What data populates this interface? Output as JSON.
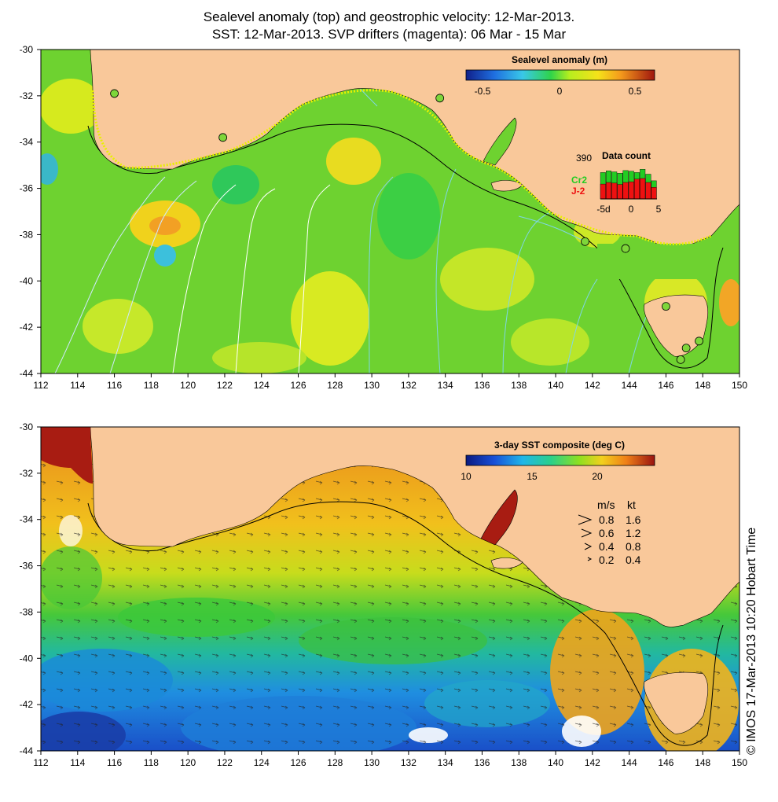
{
  "title": {
    "line1": "Sealevel anomaly (top) and geostrophic velocity: 12-Mar-2013.",
    "line2": "SST: 12-Mar-2013. SVP drifters (magenta): 06 Mar - 15 Mar"
  },
  "axes": {
    "lon_ticks": [
      "112",
      "114",
      "116",
      "118",
      "120",
      "122",
      "124",
      "126",
      "128",
      "130",
      "132",
      "134",
      "136",
      "138",
      "140",
      "142",
      "144",
      "146",
      "148",
      "150"
    ],
    "lat_ticks": [
      "-30",
      "-32",
      "-34",
      "-36",
      "-38",
      "-40",
      "-42",
      "-44"
    ],
    "lon_range": [
      112,
      150
    ],
    "lat_range": [
      -44,
      -30
    ]
  },
  "top_panel": {
    "colorbar_title": "Sealevel anomaly (m)",
    "colorbar_ticks": [
      "-0.5",
      "0",
      "0.5"
    ],
    "data_count": {
      "title": "Data count",
      "max_label": "390",
      "series": [
        {
          "name": "Cr2",
          "color": "#22cc22"
        },
        {
          "name": "J-2",
          "color": "#ee1111"
        }
      ],
      "x_ticks": [
        "-5d",
        "0",
        "5"
      ]
    },
    "tide_gauges": [
      [
        116.0,
        -31.9
      ],
      [
        121.9,
        -33.8
      ],
      [
        133.7,
        -32.1
      ],
      [
        141.6,
        -38.3
      ],
      [
        143.8,
        -38.6
      ],
      [
        146.0,
        -41.1
      ],
      [
        147.1,
        -42.9
      ],
      [
        147.8,
        -42.6
      ],
      [
        146.8,
        -43.4
      ]
    ]
  },
  "bottom_panel": {
    "colorbar_title": "3-day SST composite (deg C)",
    "colorbar_ticks": [
      "10",
      "15",
      "20"
    ],
    "velocity_legend": {
      "headers": [
        "m/s",
        "kt"
      ],
      "rows": [
        [
          "0.8",
          "1.6"
        ],
        [
          "0.6",
          "1.2"
        ],
        [
          "0.4",
          "0.8"
        ],
        [
          "0.2",
          "0.4"
        ]
      ]
    }
  },
  "copyright": "© IMOS 17-Mar-2013 10:20 Hobart Time",
  "colors": {
    "land": "#f9c89a",
    "coast_line": "#000000"
  }
}
